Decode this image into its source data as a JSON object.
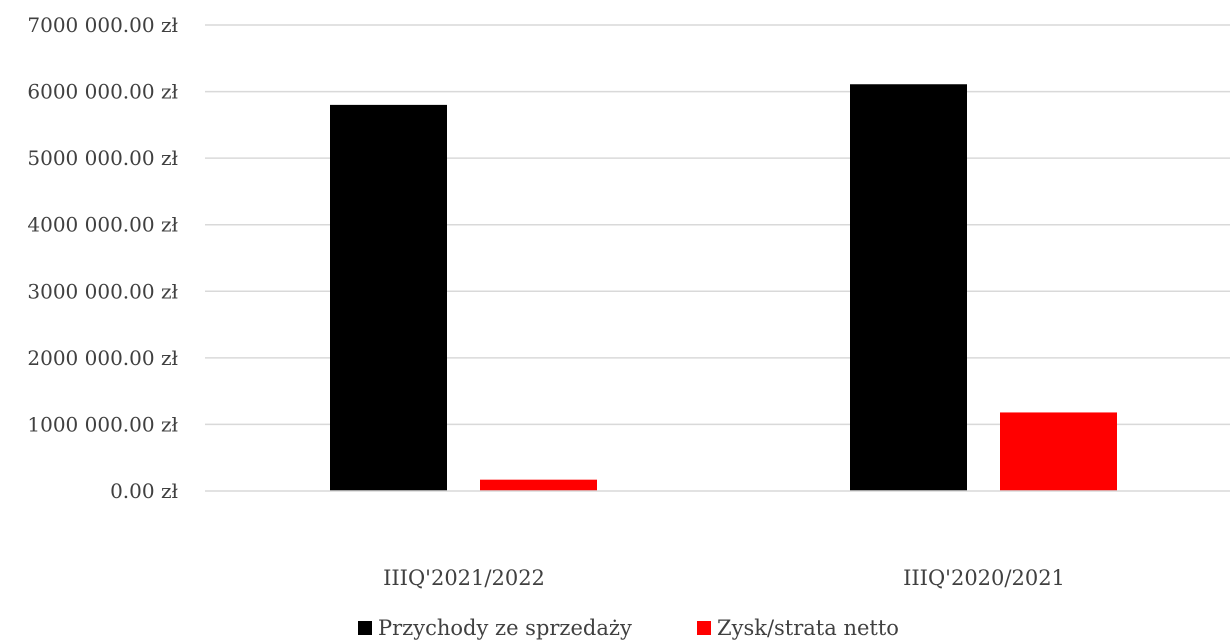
{
  "chart_data": {
    "type": "bar",
    "title": "",
    "xlabel": "",
    "ylabel": "",
    "categories": [
      "IIIQ'2021/2022",
      "IIIQ'2020/2021"
    ],
    "series": [
      {
        "name": "Przychody ze sprzedaży",
        "color": "#000000",
        "values": [
          5800000,
          6110000
        ]
      },
      {
        "name": "Zysk/strata netto",
        "color": "#ff0000",
        "values": [
          170000,
          1180000
        ]
      }
    ],
    "ylim": [
      0,
      7000000
    ],
    "yticks": [
      0,
      1000000,
      2000000,
      3000000,
      4000000,
      5000000,
      6000000,
      7000000
    ],
    "ytick_labels": [
      "0.00 zł",
      "1000 000.00 zł",
      "2000 000.00 zł",
      "3000 000.00 zł",
      "4000 000.00 zł",
      "5000 000.00 zł",
      "6000 000.00 zł",
      "7000 000.00 zł"
    ],
    "grid": true,
    "legend_position": "bottom"
  }
}
